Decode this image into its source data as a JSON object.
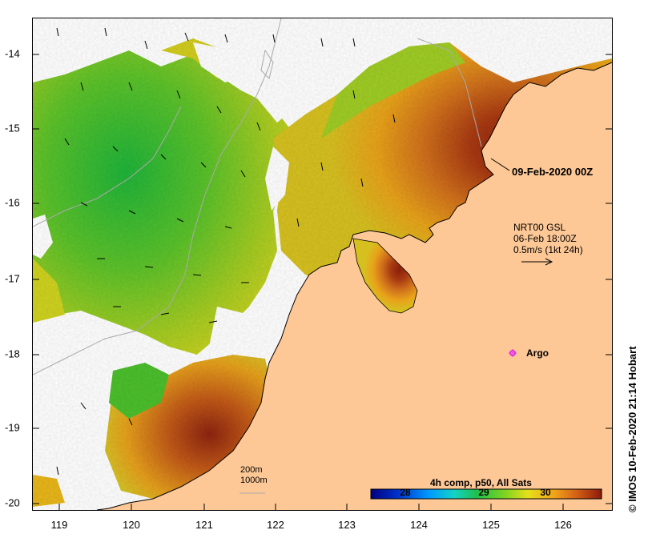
{
  "map": {
    "axes": {
      "y_ticks": [
        "-14",
        "-15",
        "-16",
        "-17",
        "-18",
        "-19",
        "-20"
      ],
      "x_ticks": [
        "119",
        "120",
        "121",
        "122",
        "123",
        "124",
        "125",
        "126"
      ]
    },
    "annotations": {
      "date_label": "09-Feb-2020 00Z",
      "current_line1": "NRT00 GSL",
      "current_line2": "06-Feb 18:00Z",
      "current_line3": "0.5m/s (1kt 24h)",
      "argo_label": "Argo",
      "depth_line1": "200m",
      "depth_line2": "1000m"
    },
    "colorbar": {
      "title": "4h comp, p50, All Sats",
      "ticks": [
        "28",
        "29",
        "30"
      ]
    },
    "credit": "© IMOS 10-Feb-2020 21:14 Hobart",
    "colors": {
      "land": "#fdc896",
      "argo_marker": "#e030e0",
      "depth_contour": "#aaaaaa",
      "coastline": "#000000"
    }
  }
}
